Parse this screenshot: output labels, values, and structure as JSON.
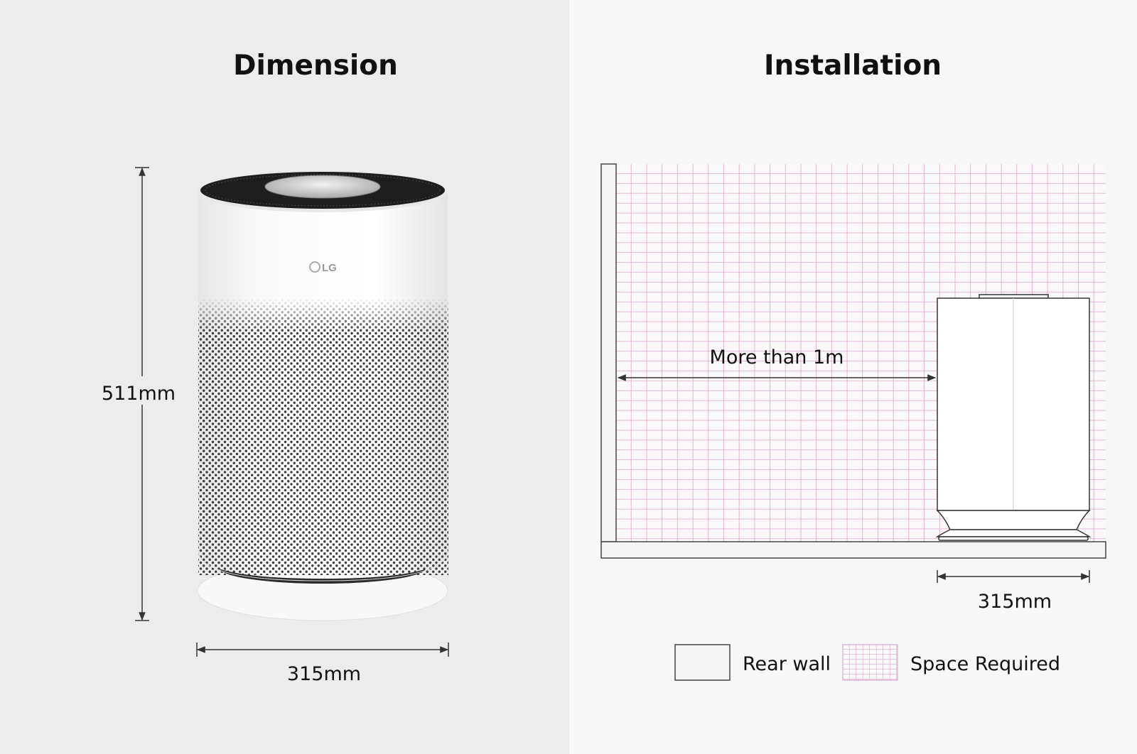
{
  "dimension": {
    "title": "Dimension",
    "height_label": "511mm",
    "width_label": "315mm",
    "product_logo": "LG"
  },
  "installation": {
    "title": "Installation",
    "clearance_label": "More than 1m",
    "width_label": "315mm"
  },
  "legend": {
    "items": [
      {
        "label": "Rear wall"
      },
      {
        "label": "Space Required"
      }
    ]
  },
  "colors": {
    "left_background": "#ececec",
    "right_background": "#f7f7f7",
    "grid_line": "#d9a9cc",
    "line": "#333333"
  }
}
